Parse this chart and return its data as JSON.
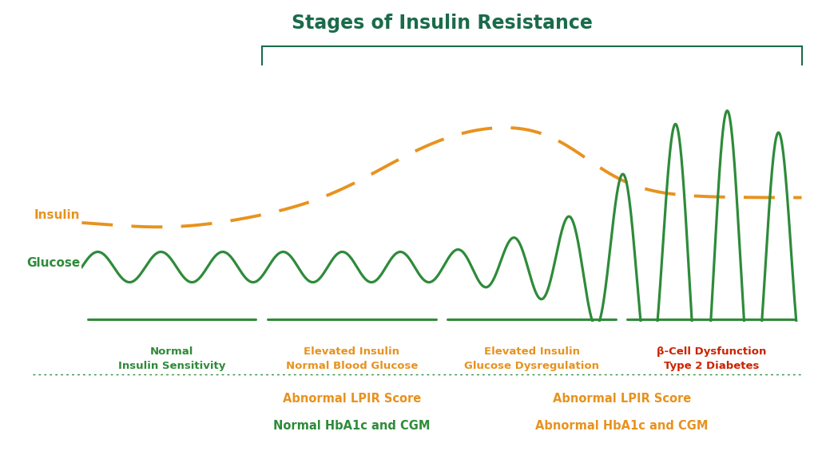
{
  "title": "Stages of Insulin Resistance",
  "title_color": "#1a6b4a",
  "title_fontsize": 17,
  "background_color": "#ffffff",
  "insulin_color": "#e8921e",
  "glucose_color": "#2e8b3a",
  "red_color": "#cc2200",
  "stage_colors": [
    "#2e8b3a",
    "#e8921e",
    "#e8921e",
    "#cc2200"
  ],
  "stage_labels": [
    "Normal\nInsulin Sensitivity",
    "Elevated Insulin\nNormal Blood Glucose",
    "Elevated Insulin\nGlucose Dysregulation",
    "β-Cell Dysfunction\nType 2 Diabetes"
  ],
  "lpir_color": "#e8921e",
  "hba1c_colors": [
    "#2e8b3a",
    "#e8921e"
  ],
  "dotted_line_color": "#2e8b3a",
  "bracket_color": "#1a6b4a"
}
